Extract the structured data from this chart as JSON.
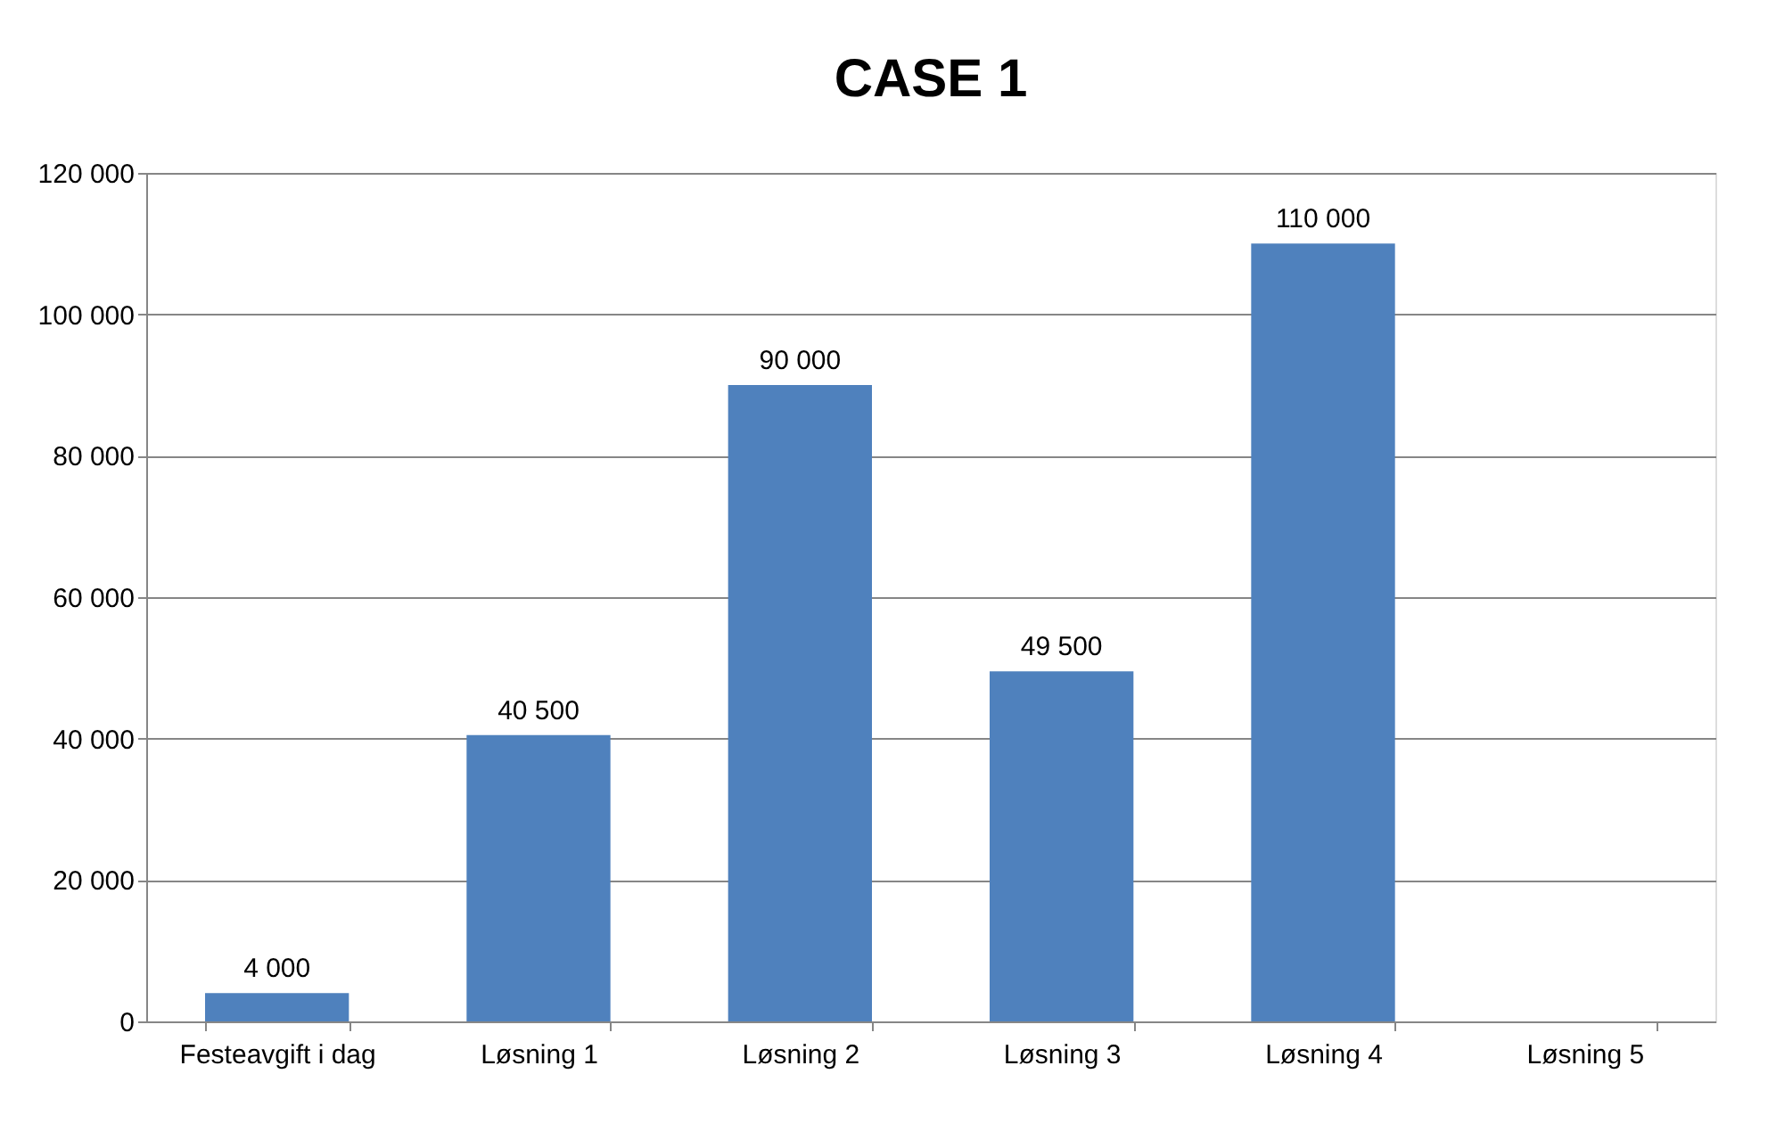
{
  "chart_data": {
    "type": "bar",
    "title": "CASE 1",
    "categories": [
      "Festeavgift i dag",
      "Løsning 1",
      "Løsning 2",
      "Løsning 3",
      "Løsning 4",
      "Løsning 5"
    ],
    "values": [
      4000,
      40500,
      90000,
      49500,
      110000,
      null
    ],
    "value_labels": [
      "4 000",
      "40 500",
      "90 000",
      "49 500",
      "110 000",
      null
    ],
    "color": "#4f81bd",
    "ylim": [
      0,
      120000
    ],
    "yticks": [
      {
        "value": 0,
        "label": "0"
      },
      {
        "value": 20000,
        "label": "20 000"
      },
      {
        "value": 40000,
        "label": "40 000"
      },
      {
        "value": 60000,
        "label": "60 000"
      },
      {
        "value": 80000,
        "label": "80 000"
      },
      {
        "value": 100000,
        "label": "100 000"
      },
      {
        "value": 120000,
        "label": "120 000"
      }
    ],
    "grid": "y"
  }
}
